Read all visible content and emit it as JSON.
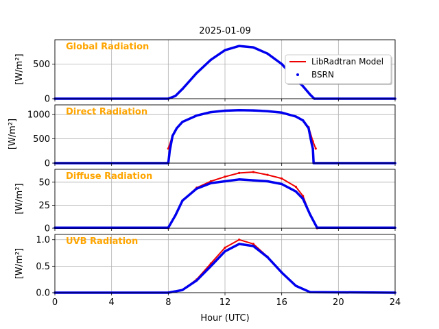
{
  "figure": {
    "title": "2025-01-09",
    "xlabel": "Hour (UTC)"
  },
  "colors": {
    "model": "#ee0000",
    "bsrn": "#0000ee",
    "label": "#FFA500",
    "grid": "#b0b0b0"
  },
  "legend": {
    "model_label": "LibRadtran Model",
    "bsrn_label": "BSRN"
  },
  "chart_data": [
    {
      "type": "line",
      "label": "Global Radiation",
      "ylabel": "[W/m²]",
      "xlim": [
        0,
        24
      ],
      "ylim": [
        0,
        850
      ],
      "yticks": [
        0,
        500
      ],
      "xticks": [
        0,
        4,
        8,
        12,
        16,
        20,
        24
      ],
      "series": [
        {
          "name": "LibRadtran Model",
          "x": [
            0,
            8.0,
            8.5,
            9,
            10,
            11,
            12,
            13,
            14,
            15,
            16,
            17,
            17.5,
            18,
            18.3,
            24
          ],
          "y": [
            0,
            0,
            40,
            140,
            370,
            560,
            700,
            760,
            740,
            650,
            500,
            280,
            180,
            60,
            0,
            0
          ]
        },
        {
          "name": "BSRN",
          "x": [
            0,
            8.0,
            8.5,
            9,
            10,
            11,
            12,
            13,
            14,
            15,
            16,
            17,
            17.5,
            18,
            18.3,
            24
          ],
          "y": [
            0,
            0,
            40,
            140,
            370,
            560,
            700,
            760,
            740,
            650,
            500,
            280,
            180,
            60,
            0,
            0
          ]
        }
      ]
    },
    {
      "type": "line",
      "label": "Direct Radiation",
      "ylabel": "[W/m²]",
      "xlim": [
        0,
        24
      ],
      "ylim": [
        0,
        1200
      ],
      "yticks": [
        0,
        500,
        1000
      ],
      "xticks": [
        0,
        4,
        8,
        12,
        16,
        20,
        24
      ],
      "series": [
        {
          "name": "LibRadtran Model",
          "x": [
            8.0,
            8.3,
            8.6,
            9,
            10,
            11,
            12,
            13,
            14,
            15,
            16,
            17,
            17.5,
            17.9,
            18.2,
            18.4
          ],
          "y": [
            300,
            560,
            720,
            850,
            980,
            1050,
            1080,
            1090,
            1085,
            1070,
            1040,
            960,
            880,
            740,
            450,
            300
          ]
        },
        {
          "name": "BSRN",
          "x": [
            0,
            8.0,
            8.05,
            8.1,
            8.3,
            8.6,
            9,
            10,
            11,
            12,
            13,
            14,
            15,
            16,
            17,
            17.5,
            17.9,
            18.1,
            18.2,
            18.25,
            24
          ],
          "y": [
            0,
            0,
            120,
            250,
            560,
            720,
            850,
            980,
            1050,
            1080,
            1090,
            1085,
            1070,
            1040,
            960,
            880,
            720,
            420,
            300,
            0,
            0
          ]
        }
      ]
    },
    {
      "type": "line",
      "label": "Diffuse Radiation",
      "ylabel": "[W/m²]",
      "xlim": [
        0,
        24
      ],
      "ylim": [
        0,
        64
      ],
      "yticks": [
        0,
        25,
        50
      ],
      "xticks": [
        0,
        4,
        8,
        12,
        16,
        20,
        24
      ],
      "series": [
        {
          "name": "LibRadtran Model",
          "x": [
            8.0,
            8.5,
            9,
            10,
            11,
            12,
            13,
            14,
            15,
            16,
            17,
            17.5,
            18,
            18.5
          ],
          "y": [
            0,
            14,
            30,
            44,
            51,
            56,
            60,
            61,
            58,
            54,
            45,
            35,
            15,
            0
          ]
        },
        {
          "name": "BSRN",
          "x": [
            0,
            8.0,
            8.5,
            9,
            10,
            11,
            12,
            13,
            14,
            15,
            16,
            17,
            17.5,
            18,
            18.5,
            24
          ],
          "y": [
            0.5,
            0.5,
            14,
            30,
            43,
            49,
            51,
            53,
            52,
            51,
            48,
            40,
            32,
            15,
            0.5,
            0.5
          ]
        }
      ]
    },
    {
      "type": "line",
      "label": "UVB Radiation",
      "ylabel": "[W/m²]",
      "xlim": [
        0,
        24
      ],
      "ylim": [
        0,
        1.1
      ],
      "yticks": [
        0,
        0.5,
        1
      ],
      "ytick_labels": [
        "0.0",
        "0.5",
        "1.0"
      ],
      "xticks": [
        0,
        4,
        8,
        12,
        16,
        20,
        24
      ],
      "series": [
        {
          "name": "LibRadtran Model",
          "x": [
            0,
            8.0,
            9,
            10,
            11,
            12,
            13,
            14,
            15,
            16,
            17,
            18,
            24
          ],
          "y": [
            0,
            0,
            0.05,
            0.25,
            0.55,
            0.85,
            1.0,
            0.92,
            0.68,
            0.38,
            0.13,
            0.01,
            0
          ]
        },
        {
          "name": "BSRN",
          "x": [
            0,
            8.0,
            9,
            10,
            11,
            12,
            13,
            14,
            15,
            16,
            17,
            18,
            24
          ],
          "y": [
            0,
            0,
            0.05,
            0.23,
            0.5,
            0.78,
            0.92,
            0.88,
            0.67,
            0.38,
            0.13,
            0.01,
            0
          ]
        }
      ]
    }
  ]
}
